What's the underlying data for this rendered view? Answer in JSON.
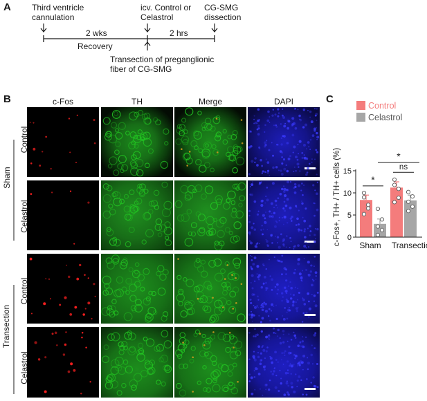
{
  "panelA": {
    "letter": "A",
    "events": {
      "cannulation": "Third ventricle cannulation",
      "icv": "icv. Control or Celastrol",
      "dissection": "CG-SMG dissection",
      "transection": "Transection of preganglionic fiber of CG-SMG"
    },
    "interval1": "2 wks",
    "interval1_label": "Recovery",
    "interval2": "2 hrs"
  },
  "panelB": {
    "letter": "B",
    "columns": [
      "c-Fos",
      "TH",
      "Merge",
      "DAPI"
    ],
    "groups": [
      {
        "name": "Sham",
        "rows": [
          "Control",
          "Celastrol"
        ]
      },
      {
        "name": "Transection",
        "rows": [
          "Control",
          "Celastrol"
        ]
      }
    ],
    "colors": {
      "cfos": "#ff2020",
      "th": "#22c422",
      "dapi": "#2a2ad8",
      "background": "#000000"
    }
  },
  "panelC": {
    "letter": "C",
    "legend": [
      {
        "label": "Control",
        "color": "#f47c7c"
      },
      {
        "label": "Celastrol",
        "color": "#a6a6a6"
      }
    ],
    "sig_top": "*",
    "sig_sham": "*",
    "sig_transection": "ns",
    "yticks": [
      "0",
      "5",
      "10",
      "15"
    ]
  },
  "chart_data": {
    "type": "bar",
    "title": "",
    "xlabel": "",
    "ylabel": "c-Fos+, TH+ / TH+ cells (%)",
    "ylim": [
      0,
      15
    ],
    "categories": [
      "Sham",
      "Transection"
    ],
    "series": [
      {
        "name": "Control",
        "color": "#f47c7c",
        "values": [
          8.4,
          11.2
        ],
        "errors": [
          1.1,
          1.3
        ],
        "points": [
          [
            10.0,
            7.3,
            9.0,
            6.5,
            5.2
          ],
          [
            13.0,
            10.9,
            11.8,
            8.9,
            7.9
          ]
        ]
      },
      {
        "name": "Celastrol",
        "color": "#a6a6a6",
        "values": [
          3.0,
          8.3
        ],
        "errors": [
          1.1,
          1.2
        ],
        "points": [
          [
            6.4,
            4.0,
            2.4,
            1.6,
            0.5
          ],
          [
            10.2,
            9.2,
            8.0,
            6.9,
            5.9
          ]
        ]
      }
    ],
    "significance": [
      {
        "between": "Sham Control vs Sham Celastrol",
        "label": "*"
      },
      {
        "between": "Transection Control vs Transection Celastrol",
        "label": "ns"
      },
      {
        "between": "Sham Celastrol vs Transection Celastrol",
        "label": "*"
      }
    ]
  }
}
